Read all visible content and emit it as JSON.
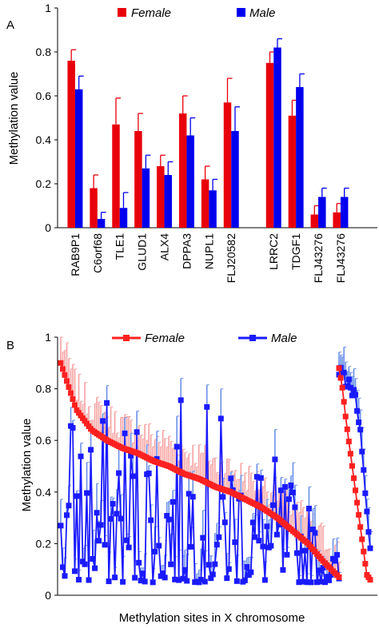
{
  "figure": {
    "panel_a_letter": "A",
    "panel_b_letter": "B"
  },
  "chart_data": [
    {
      "type": "bar",
      "panel": "A",
      "ylabel": "Methylation value",
      "xlabel": "",
      "ylim": [
        0,
        1
      ],
      "yticks": [
        "0",
        "0.2",
        "0.4",
        "0.6",
        "0.8",
        "1"
      ],
      "grid": false,
      "legend_position": "top",
      "categories": [
        "RAB9P1",
        "C6orf68",
        "TLE1",
        "GLUD1",
        "ALX4",
        "DPPA3",
        "NUPL1",
        "FLJ20582",
        "LRRC2",
        "TDGF1",
        "FLJ43276",
        "FLJ43276"
      ],
      "groups": [
        8,
        4
      ],
      "series": [
        {
          "name": "Female",
          "color": "#e8000b",
          "values": [
            0.76,
            0.18,
            0.47,
            0.44,
            0.28,
            0.52,
            0.22,
            0.57,
            0.75,
            0.51,
            0.06,
            0.07
          ],
          "error": [
            0.05,
            0.06,
            0.12,
            0.08,
            0.05,
            0.08,
            0.06,
            0.11,
            0.05,
            0.07,
            0.04,
            0.04
          ]
        },
        {
          "name": "Male",
          "color": "#0000ee",
          "values": [
            0.63,
            0.04,
            0.09,
            0.27,
            0.24,
            0.42,
            0.17,
            0.44,
            0.82,
            0.64,
            0.14,
            0.14
          ],
          "error": [
            0.06,
            0.03,
            0.07,
            0.06,
            0.06,
            0.08,
            0.05,
            0.11,
            0.04,
            0.06,
            0.04,
            0.04
          ]
        }
      ]
    },
    {
      "type": "line",
      "panel": "B",
      "ylabel": "Methylation value",
      "xlabel": "Methylation sites in X chromosome",
      "ylim": [
        0,
        1
      ],
      "yticks": [
        "0",
        "0.2",
        "0.4",
        "0.6",
        "0.8",
        "1"
      ],
      "grid": false,
      "legend_position": "top",
      "n_sites_main": 140,
      "n_sites_right": 20,
      "series": [
        {
          "name": "Female",
          "color": "#ff2020",
          "error_color": "#f7a0a0",
          "main_anchor_values": [
            0.9,
            0.72,
            0.64,
            0.6,
            0.57,
            0.55,
            0.52,
            0.5,
            0.47,
            0.45,
            0.42,
            0.4,
            0.37,
            0.34,
            0.3,
            0.25,
            0.2,
            0.13,
            0.07
          ],
          "right_anchor_values": [
            0.88,
            0.8,
            0.68,
            0.58,
            0.48,
            0.38,
            0.28,
            0.18,
            0.08,
            0.06
          ]
        },
        {
          "name": "Male",
          "color": "#1a1aff",
          "error_color": "#6a90e8",
          "main_range": [
            0.05,
            0.8
          ],
          "right_anchor_values": [
            0.9,
            0.88,
            0.86,
            0.84,
            0.82,
            0.8,
            0.75,
            0.65,
            0.5,
            0.35,
            0.2
          ]
        }
      ]
    }
  ]
}
